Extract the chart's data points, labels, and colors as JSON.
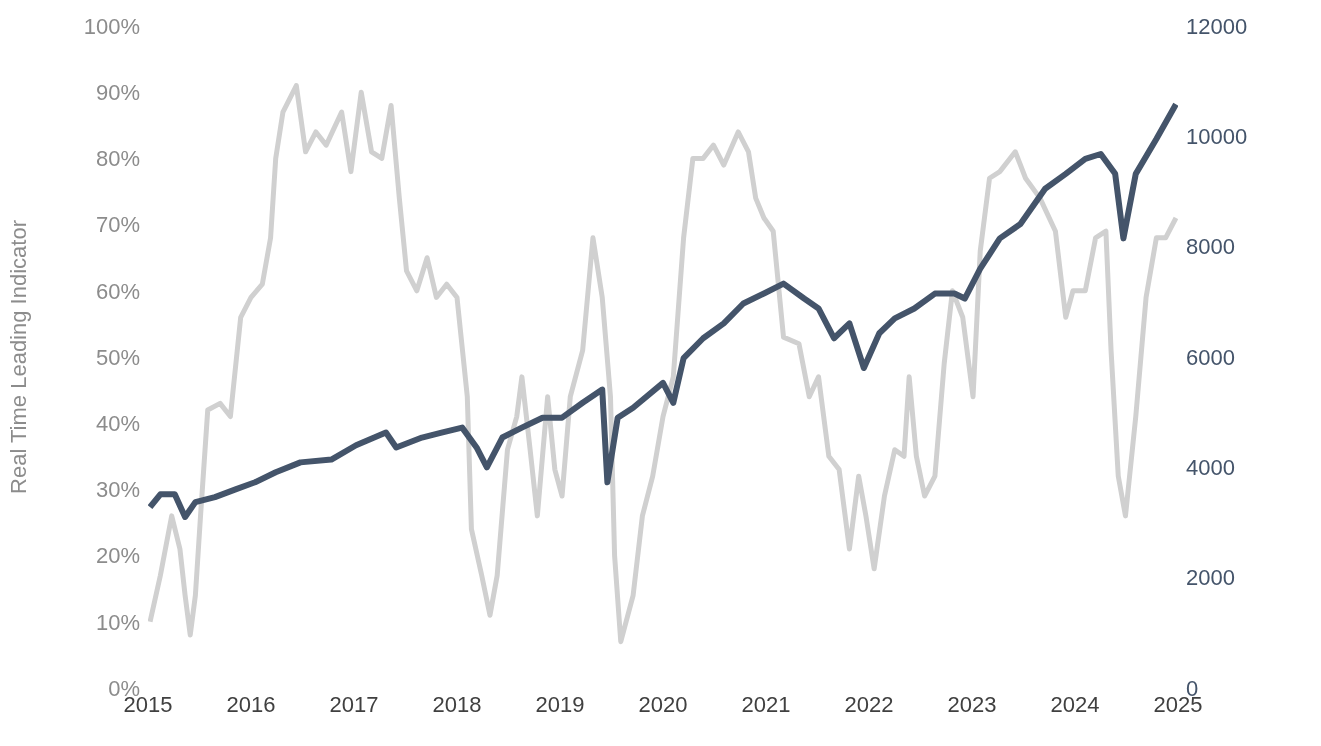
{
  "chart_data": {
    "type": "line",
    "ylabel": "Real Time Leading Indicator",
    "xlim": [
      2015,
      2025
    ],
    "xticks": [
      2015,
      2016,
      2017,
      2018,
      2019,
      2020,
      2021,
      2022,
      2023,
      2024,
      2025
    ],
    "ylim": [
      0,
      100
    ],
    "yticks": [
      {
        "value": 0,
        "label": "0%"
      },
      {
        "value": 10,
        "label": "10%"
      },
      {
        "value": 20,
        "label": "20%"
      },
      {
        "value": 30,
        "label": "30%"
      },
      {
        "value": 40,
        "label": "40%"
      },
      {
        "value": 50,
        "label": "50%"
      },
      {
        "value": 60,
        "label": "60%"
      },
      {
        "value": 70,
        "label": "70%"
      },
      {
        "value": 80,
        "label": "80%"
      },
      {
        "value": 90,
        "label": "90%"
      },
      {
        "value": 100,
        "label": "100%"
      }
    ],
    "y2lim": [
      0,
      12000
    ],
    "y2ticks": [
      0,
      2000,
      4000,
      6000,
      8000,
      10000,
      12000
    ],
    "marker": "none",
    "line_style": "solid",
    "series": [
      {
        "color": "#d0d0d0",
        "x": [
          2015.02,
          2015.12,
          2015.23,
          2015.31,
          2015.36,
          2015.41,
          2015.46,
          2015.51,
          2015.58,
          2015.7,
          2015.8,
          2015.9,
          2016.0,
          2016.11,
          2016.19,
          2016.24,
          2016.31,
          2016.44,
          2016.53,
          2016.63,
          2016.73,
          2016.88,
          2016.97,
          2017.07,
          2017.17,
          2017.27,
          2017.36,
          2017.44,
          2017.51,
          2017.61,
          2017.71,
          2017.8,
          2017.9,
          2018.0,
          2018.1,
          2018.14,
          2018.24,
          2018.32,
          2018.39,
          2018.49,
          2018.58,
          2018.63,
          2018.71,
          2018.78,
          2018.88,
          2018.95,
          2019.02,
          2019.1,
          2019.22,
          2019.32,
          2019.41,
          2019.49,
          2019.53,
          2019.59,
          2019.71,
          2019.8,
          2019.9,
          2020.0,
          2020.1,
          2020.2,
          2020.29,
          2020.39,
          2020.49,
          2020.59,
          2020.73,
          2020.83,
          2020.9,
          2020.98,
          2021.07,
          2021.17,
          2021.32,
          2021.42,
          2021.51,
          2021.61,
          2021.71,
          2021.81,
          2021.9,
          2021.97,
          2022.05,
          2022.15,
          2022.25,
          2022.34,
          2022.39,
          2022.46,
          2022.54,
          2022.64,
          2022.73,
          2022.81,
          2022.91,
          2023.01,
          2023.08,
          2023.17,
          2023.27,
          2023.42,
          2023.52,
          2023.66,
          2023.81,
          2023.91,
          2023.98,
          2024.1,
          2024.2,
          2024.3,
          2024.35,
          2024.42,
          2024.49,
          2024.59,
          2024.69,
          2024.79,
          2024.88,
          2024.98
        ],
        "values": [
          10,
          17,
          26,
          21,
          14,
          8,
          14,
          26,
          42,
          43,
          41,
          56,
          59,
          61,
          68,
          80,
          87,
          91,
          81,
          84,
          82,
          87,
          78,
          90,
          81,
          80,
          88,
          74,
          63,
          60,
          65,
          59,
          61,
          59,
          44,
          24,
          17,
          11,
          17,
          36,
          41,
          47,
          36,
          26,
          44,
          33,
          29,
          44,
          51,
          68,
          59,
          44,
          20,
          7,
          14,
          26,
          32,
          41,
          47,
          68,
          80,
          80,
          82,
          79,
          84,
          81,
          74,
          71,
          69,
          53,
          52,
          44,
          47,
          35,
          33,
          21,
          32,
          26,
          18,
          29,
          36,
          35,
          47,
          35,
          29,
          32,
          49,
          60,
          56,
          44,
          66,
          77,
          78,
          81,
          77,
          74,
          69,
          56,
          60,
          60,
          68,
          69,
          51,
          32,
          26,
          41,
          59,
          68,
          68,
          71
        ]
      },
      {
        "color": "#44546a",
        "axis": "y2",
        "x": [
          2015.02,
          2015.12,
          2015.26,
          2015.36,
          2015.46,
          2015.65,
          2015.85,
          2016.04,
          2016.24,
          2016.48,
          2016.78,
          2017.02,
          2017.31,
          2017.41,
          2017.66,
          2017.85,
          2018.05,
          2018.19,
          2018.29,
          2018.44,
          2018.63,
          2018.83,
          2019.02,
          2019.22,
          2019.41,
          2019.46,
          2019.56,
          2019.71,
          2020.0,
          2020.1,
          2020.2,
          2020.39,
          2020.59,
          2020.78,
          2020.98,
          2021.17,
          2021.37,
          2021.51,
          2021.66,
          2021.81,
          2021.95,
          2022.1,
          2022.25,
          2022.44,
          2022.64,
          2022.83,
          2022.93,
          2023.08,
          2023.27,
          2023.47,
          2023.71,
          2023.91,
          2024.1,
          2024.25,
          2024.39,
          2024.47,
          2024.59,
          2024.79,
          2024.98
        ],
        "values": [
          3280,
          3510,
          3510,
          3100,
          3370,
          3460,
          3600,
          3730,
          3910,
          4090,
          4140,
          4400,
          4630,
          4360,
          4540,
          4630,
          4720,
          4360,
          4000,
          4540,
          4720,
          4900,
          4900,
          5170,
          5410,
          3730,
          4900,
          5080,
          5530,
          5170,
          5980,
          6340,
          6610,
          6970,
          7150,
          7330,
          7060,
          6880,
          6340,
          6610,
          5800,
          6430,
          6700,
          6880,
          7150,
          7150,
          7060,
          7600,
          8150,
          8410,
          9050,
          9320,
          9590,
          9680,
          9320,
          8150,
          9320,
          9950,
          10580
        ]
      }
    ]
  }
}
